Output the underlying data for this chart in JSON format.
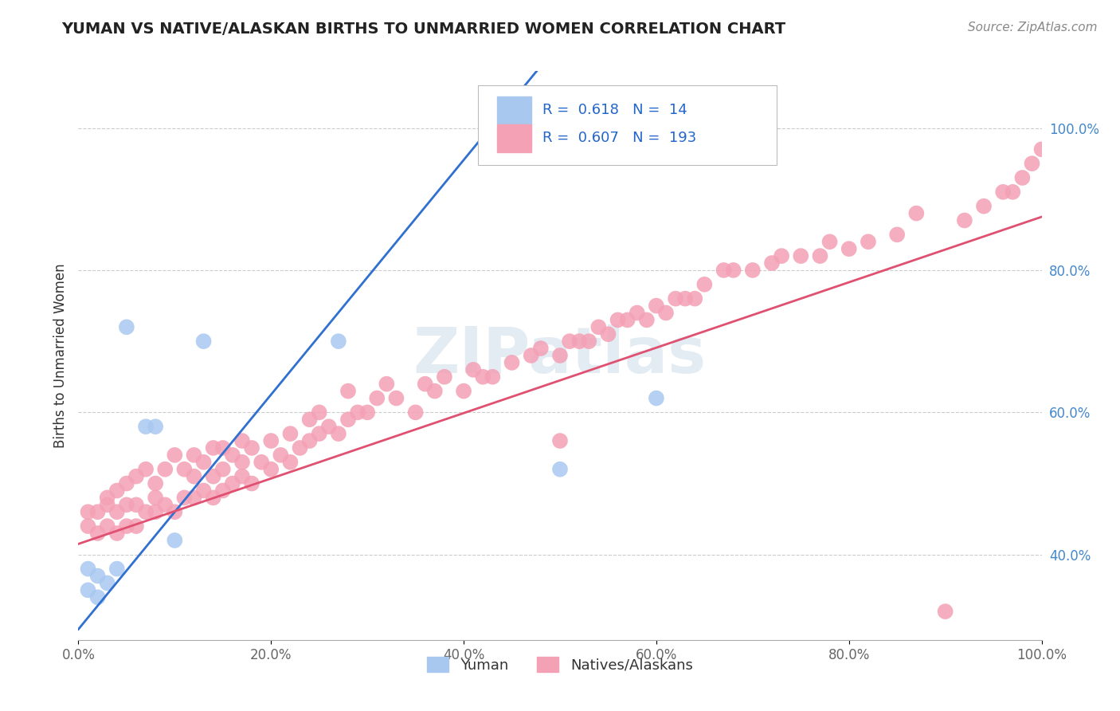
{
  "title": "YUMAN VS NATIVE/ALASKAN BIRTHS TO UNMARRIED WOMEN CORRELATION CHART",
  "source": "Source: ZipAtlas.com",
  "ylabel": "Births to Unmarried Women",
  "xlim": [
    0.0,
    1.0
  ],
  "ylim": [
    0.28,
    1.08
  ],
  "x_tick_labels": [
    "0.0%",
    "20.0%",
    "40.0%",
    "60.0%",
    "80.0%",
    "100.0%"
  ],
  "x_ticks": [
    0.0,
    0.2,
    0.4,
    0.6,
    0.8,
    1.0
  ],
  "y_tick_labels": [
    "40.0%",
    "60.0%",
    "80.0%",
    "100.0%"
  ],
  "y_ticks": [
    0.4,
    0.6,
    0.8,
    1.0
  ],
  "background_color": "#ffffff",
  "watermark": "ZIPatlas",
  "blue_R": 0.618,
  "blue_N": 14,
  "pink_R": 0.607,
  "pink_N": 193,
  "blue_color": "#a8c8f0",
  "pink_color": "#f4a0b5",
  "blue_line_color": "#3070d0",
  "pink_line_color": "#e05070",
  "legend_blue_label": "Yuman",
  "legend_pink_label": "Natives/Alaskans",
  "blue_scatter_x": [
    0.01,
    0.01,
    0.02,
    0.02,
    0.03,
    0.04,
    0.05,
    0.07,
    0.08,
    0.1,
    0.13,
    0.27,
    0.5,
    0.6
  ],
  "blue_scatter_y": [
    0.35,
    0.38,
    0.34,
    0.37,
    0.36,
    0.38,
    0.72,
    0.58,
    0.58,
    0.42,
    0.7,
    0.7,
    0.52,
    0.62
  ],
  "pink_scatter_x": [
    0.01,
    0.01,
    0.02,
    0.02,
    0.03,
    0.03,
    0.03,
    0.04,
    0.04,
    0.04,
    0.05,
    0.05,
    0.05,
    0.06,
    0.06,
    0.06,
    0.07,
    0.07,
    0.08,
    0.08,
    0.08,
    0.09,
    0.09,
    0.1,
    0.1,
    0.11,
    0.11,
    0.12,
    0.12,
    0.12,
    0.13,
    0.13,
    0.14,
    0.14,
    0.14,
    0.15,
    0.15,
    0.15,
    0.16,
    0.16,
    0.17,
    0.17,
    0.17,
    0.18,
    0.18,
    0.19,
    0.2,
    0.2,
    0.21,
    0.22,
    0.22,
    0.23,
    0.24,
    0.24,
    0.25,
    0.25,
    0.26,
    0.27,
    0.28,
    0.28,
    0.29,
    0.3,
    0.31,
    0.32,
    0.33,
    0.35,
    0.36,
    0.37,
    0.38,
    0.4,
    0.41,
    0.42,
    0.43,
    0.45,
    0.47,
    0.48,
    0.5,
    0.5,
    0.51,
    0.52,
    0.53,
    0.54,
    0.55,
    0.56,
    0.57,
    0.58,
    0.59,
    0.6,
    0.61,
    0.62,
    0.63,
    0.64,
    0.65,
    0.67,
    0.68,
    0.7,
    0.72,
    0.73,
    0.75,
    0.77,
    0.78,
    0.8,
    0.82,
    0.85,
    0.87,
    0.9,
    0.92,
    0.94,
    0.96,
    0.97,
    0.98,
    0.99,
    1.0
  ],
  "pink_scatter_y": [
    0.44,
    0.46,
    0.43,
    0.46,
    0.44,
    0.47,
    0.48,
    0.43,
    0.46,
    0.49,
    0.44,
    0.47,
    0.5,
    0.44,
    0.47,
    0.51,
    0.46,
    0.52,
    0.46,
    0.48,
    0.5,
    0.47,
    0.52,
    0.46,
    0.54,
    0.48,
    0.52,
    0.48,
    0.51,
    0.54,
    0.49,
    0.53,
    0.48,
    0.51,
    0.55,
    0.49,
    0.52,
    0.55,
    0.5,
    0.54,
    0.51,
    0.53,
    0.56,
    0.5,
    0.55,
    0.53,
    0.52,
    0.56,
    0.54,
    0.53,
    0.57,
    0.55,
    0.56,
    0.59,
    0.57,
    0.6,
    0.58,
    0.57,
    0.59,
    0.63,
    0.6,
    0.6,
    0.62,
    0.64,
    0.62,
    0.6,
    0.64,
    0.63,
    0.65,
    0.63,
    0.66,
    0.65,
    0.65,
    0.67,
    0.68,
    0.69,
    0.68,
    0.56,
    0.7,
    0.7,
    0.7,
    0.72,
    0.71,
    0.73,
    0.73,
    0.74,
    0.73,
    0.75,
    0.74,
    0.76,
    0.76,
    0.76,
    0.78,
    0.8,
    0.8,
    0.8,
    0.81,
    0.82,
    0.82,
    0.82,
    0.84,
    0.83,
    0.84,
    0.85,
    0.88,
    0.32,
    0.87,
    0.89,
    0.91,
    0.91,
    0.93,
    0.95,
    0.97
  ]
}
